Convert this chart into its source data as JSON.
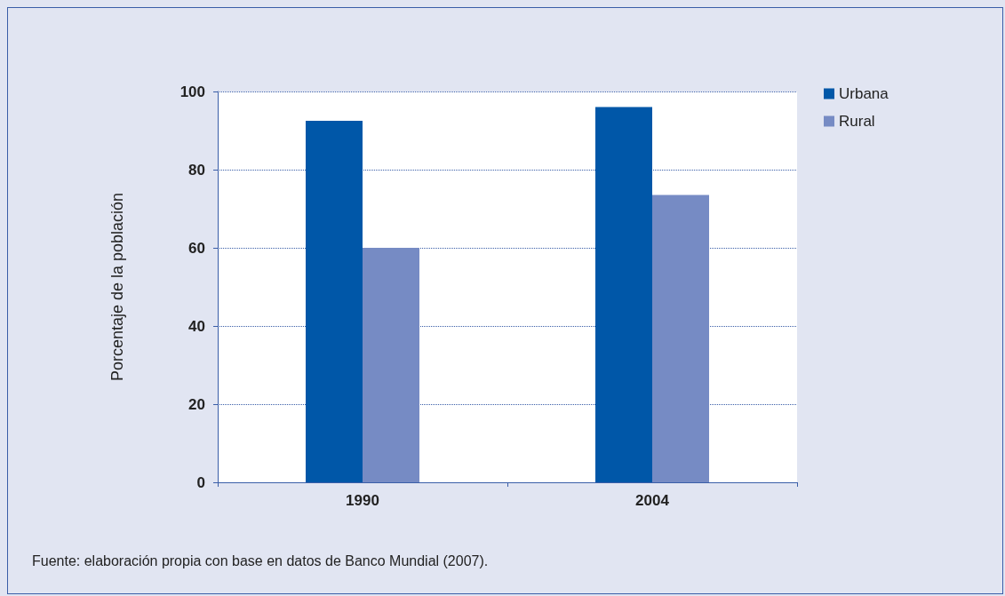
{
  "chart_data": {
    "type": "bar",
    "ylabel": "Porcentaje de la población",
    "categories": [
      "1990",
      "2004"
    ],
    "series": [
      {
        "name": "Urbana",
        "color": "#0057a8",
        "values": [
          92.5,
          96
        ]
      },
      {
        "name": "Rural",
        "color": "#768bc4",
        "values": [
          60,
          73.5
        ]
      }
    ],
    "ylim": [
      0,
      100
    ],
    "yticks": [
      0,
      20,
      40,
      60,
      80,
      100
    ],
    "grid": "y",
    "legend": "top right",
    "annotations": [
      "Fuente: elaboración propia con base en datos de Banco Mundial (2007)."
    ]
  }
}
